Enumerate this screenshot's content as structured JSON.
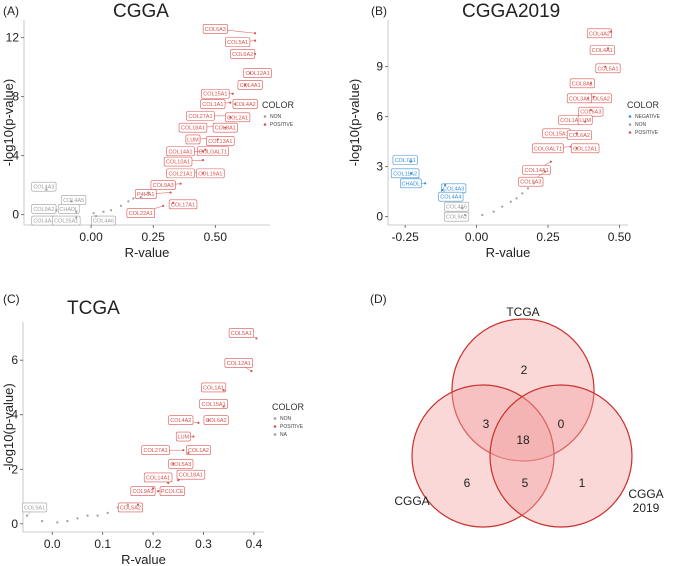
{
  "colors": {
    "positive": "#d9534f",
    "negative": "#3b8fd8",
    "non": "#9e9e9e",
    "na": "#9e9e9e",
    "venn_fill": "#f4a3a3",
    "venn_stroke": "#c9302c"
  },
  "chart_data": [
    {
      "type": "scatter",
      "panel": "(A)",
      "title": "CGGA",
      "xlabel": "R-value",
      "ylabel": "-log10(p-value)",
      "xlim": [
        -0.27,
        0.72
      ],
      "ylim": [
        -0.7,
        13.2
      ],
      "xticks": [
        0.0,
        0.25,
        0.5
      ],
      "xtick_labels": [
        "0.00",
        "0.25",
        "0.50"
      ],
      "yticks": [
        0,
        4,
        8,
        12
      ],
      "ytick_labels": [
        "0",
        "4",
        "8",
        "12"
      ],
      "legend": {
        "title": "COLOR",
        "entries": [
          {
            "label": "NON",
            "group": "non"
          },
          {
            "label": "POSITIVE",
            "group": "positive"
          }
        ]
      },
      "points": [
        {
          "x": 0.66,
          "y": 12.3,
          "label": "COL6A3",
          "group": "positive",
          "lx": 0.5,
          "ly": 12.6
        },
        {
          "x": 0.66,
          "y": 11.8,
          "label": "COL5A1",
          "group": "positive",
          "lx": 0.59,
          "ly": 11.7
        },
        {
          "x": 0.66,
          "y": 10.9,
          "label": "COL6A2",
          "group": "positive",
          "lx": 0.61,
          "ly": 10.9
        },
        {
          "x": 0.64,
          "y": 9.6,
          "label": "COL12A1",
          "group": "positive",
          "lx": 0.67,
          "ly": 9.6
        },
        {
          "x": 0.62,
          "y": 8.8,
          "label": "COL4A1",
          "group": "positive",
          "lx": 0.64,
          "ly": 8.8
        },
        {
          "x": 0.57,
          "y": 8.2,
          "label": "COL15A1",
          "group": "positive",
          "lx": 0.5,
          "ly": 8.2
        },
        {
          "x": 0.56,
          "y": 7.6,
          "label": "COL1A1",
          "group": "positive",
          "lx": 0.49,
          "ly": 7.5
        },
        {
          "x": 0.58,
          "y": 7.5,
          "label": "COL4A2",
          "group": "positive",
          "lx": 0.62,
          "ly": 7.5
        },
        {
          "x": 0.55,
          "y": 6.7,
          "label": "COL27A1",
          "group": "positive",
          "lx": 0.44,
          "ly": 6.7
        },
        {
          "x": 0.56,
          "y": 6.6,
          "label": "COL2A1",
          "group": "positive",
          "lx": 0.59,
          "ly": 6.6
        },
        {
          "x": 0.53,
          "y": 6.0,
          "label": "COL18A1",
          "group": "positive",
          "lx": 0.41,
          "ly": 5.9
        },
        {
          "x": 0.54,
          "y": 5.9,
          "label": "COL8A1",
          "group": "positive",
          "lx": 0.54,
          "ly": 5.9
        },
        {
          "x": 0.5,
          "y": 5.2,
          "label": "LUM",
          "group": "positive",
          "lx": 0.41,
          "ly": 5.1
        },
        {
          "x": 0.51,
          "y": 5.1,
          "label": "COL13A1",
          "group": "positive",
          "lx": 0.52,
          "ly": 5.0
        },
        {
          "x": 0.46,
          "y": 4.4,
          "label": "COLGALT1",
          "group": "positive",
          "lx": 0.49,
          "ly": 4.3
        },
        {
          "x": 0.45,
          "y": 4.3,
          "label": "COL14A1",
          "group": "positive",
          "lx": 0.36,
          "ly": 4.3
        },
        {
          "x": 0.45,
          "y": 3.7,
          "label": "COL10A1",
          "group": "positive",
          "lx": 0.35,
          "ly": 3.6
        },
        {
          "x": 0.44,
          "y": 2.9,
          "label": "COL21A1",
          "group": "positive",
          "lx": 0.36,
          "ly": 2.8
        },
        {
          "x": 0.45,
          "y": 2.8,
          "label": "COL19A1",
          "group": "positive",
          "lx": 0.48,
          "ly": 2.8
        },
        {
          "x": 0.36,
          "y": 2.1,
          "label": "COL9A3",
          "group": "positive",
          "lx": 0.29,
          "ly": 2.0
        },
        {
          "x": 0.32,
          "y": 1.5,
          "label": "P4HA1",
          "group": "positive",
          "lx": 0.22,
          "ly": 1.4
        },
        {
          "x": 0.33,
          "y": 0.8,
          "label": "COL17A1",
          "group": "positive",
          "lx": 0.37,
          "ly": 0.7
        },
        {
          "x": 0.29,
          "y": 0.6,
          "label": "COL22A1",
          "group": "positive",
          "lx": 0.2,
          "ly": 0.1
        },
        {
          "x": -0.18,
          "y": 1.7,
          "label": "COL4A3",
          "group": "non",
          "lx": -0.19,
          "ly": 1.9
        },
        {
          "x": -0.08,
          "y": 0.9,
          "label": "COL4A5",
          "group": "non",
          "lx": -0.07,
          "ly": 1.0
        },
        {
          "x": -0.14,
          "y": 0.3,
          "label": "COL9A2",
          "group": "non",
          "lx": -0.19,
          "ly": 0.4
        },
        {
          "x": -0.06,
          "y": 0.2,
          "label": "CHADL",
          "group": "non",
          "lx": -0.09,
          "ly": 0.4
        },
        {
          "x": -0.13,
          "y": -0.2,
          "label": "COL4A4",
          "group": "non",
          "lx": -0.19,
          "ly": -0.4
        },
        {
          "x": -0.06,
          "y": -0.2,
          "label": "COL25A1",
          "group": "non",
          "lx": -0.1,
          "ly": -0.4
        },
        {
          "x": 0.02,
          "y": -0.1,
          "label": "COL4A6",
          "group": "non",
          "lx": 0.05,
          "ly": -0.4
        },
        {
          "x": 0.08,
          "y": 0.3,
          "group": "non"
        },
        {
          "x": 0.12,
          "y": 0.6,
          "group": "non"
        },
        {
          "x": 0.15,
          "y": 0.9,
          "group": "non"
        },
        {
          "x": 0.17,
          "y": 1.1,
          "group": "non"
        },
        {
          "x": 0.01,
          "y": 0.1,
          "group": "non"
        },
        {
          "x": 0.05,
          "y": 0.2,
          "group": "non"
        },
        {
          "x": 0.2,
          "y": 1.2,
          "group": "non"
        },
        {
          "x": 0.23,
          "y": 1.5,
          "group": "non"
        }
      ]
    },
    {
      "type": "scatter",
      "panel": "(B)",
      "title": "CGGA2019",
      "xlabel": "R-value",
      "ylabel": "-log10(p-value)",
      "xlim": [
        -0.31,
        0.53
      ],
      "ylim": [
        -0.5,
        11.8
      ],
      "xticks": [
        -0.25,
        0.0,
        0.25,
        0.5
      ],
      "xtick_labels": [
        "-0.25",
        "0.00",
        "0.25",
        "0.50"
      ],
      "yticks": [
        0,
        3,
        6,
        9
      ],
      "ytick_labels": [
        "0",
        "3",
        "6",
        "9"
      ],
      "legend": {
        "title": "COLOR",
        "entries": [
          {
            "label": "NEGATIVE",
            "group": "negative"
          },
          {
            "label": "NON",
            "group": "non"
          },
          {
            "label": "POSITIVE",
            "group": "positive"
          }
        ]
      },
      "points": [
        {
          "x": 0.47,
          "y": 11.1,
          "label": "COL4A2",
          "group": "positive",
          "lx": 0.43,
          "ly": 11.0
        },
        {
          "x": 0.46,
          "y": 10.1,
          "label": "COL4A1",
          "group": "positive",
          "lx": 0.44,
          "ly": 10.0
        },
        {
          "x": 0.45,
          "y": 9.0,
          "label": "COL5A1",
          "group": "positive",
          "lx": 0.46,
          "ly": 8.9
        },
        {
          "x": 0.4,
          "y": 8.0,
          "label": "COL8A1",
          "group": "positive",
          "lx": 0.37,
          "ly": 8.0
        },
        {
          "x": 0.41,
          "y": 7.2,
          "label": "COL5A2",
          "group": "positive",
          "lx": 0.43,
          "ly": 7.1
        },
        {
          "x": 0.39,
          "y": 7.1,
          "label": "COL3A1",
          "group": "positive",
          "lx": 0.36,
          "ly": 7.1
        },
        {
          "x": 0.4,
          "y": 6.4,
          "label": "COL6A3",
          "group": "positive",
          "lx": 0.4,
          "ly": 6.3
        },
        {
          "x": 0.37,
          "y": 5.8,
          "label": "COL1A2",
          "group": "positive",
          "lx": 0.33,
          "ly": 5.8
        },
        {
          "x": 0.38,
          "y": 5.7,
          "label": "LUM",
          "group": "positive",
          "lx": 0.38,
          "ly": 5.8
        },
        {
          "x": 0.34,
          "y": 5.1,
          "label": "COL15A1",
          "group": "positive",
          "lx": 0.28,
          "ly": 5.0
        },
        {
          "x": 0.35,
          "y": 5.0,
          "label": "COL6A2",
          "group": "positive",
          "lx": 0.36,
          "ly": 4.9
        },
        {
          "x": 0.33,
          "y": 4.2,
          "label": "COLGALT1",
          "group": "positive",
          "lx": 0.25,
          "ly": 4.1
        },
        {
          "x": 0.35,
          "y": 4.1,
          "label": "COL12A1",
          "group": "positive",
          "lx": 0.38,
          "ly": 4.1
        },
        {
          "x": 0.26,
          "y": 3.3,
          "label": "COL14A1",
          "group": "positive",
          "lx": 0.21,
          "ly": 2.8
        },
        {
          "x": 0.24,
          "y": 2.7,
          "label": "COL9A3",
          "group": "positive",
          "lx": 0.19,
          "ly": 2.1
        },
        {
          "x": -0.23,
          "y": 3.3,
          "label": "COL7A1",
          "group": "negative",
          "lx": -0.25,
          "ly": 3.4
        },
        {
          "x": -0.23,
          "y": 2.6,
          "label": "COL11A2",
          "group": "negative",
          "lx": -0.25,
          "ly": 2.6
        },
        {
          "x": -0.18,
          "y": 2.0,
          "label": "CHADL",
          "group": "negative",
          "lx": -0.23,
          "ly": 2.0
        },
        {
          "x": -0.11,
          "y": 1.9,
          "label": "COL4A3",
          "group": "negative",
          "lx": -0.08,
          "ly": 1.7
        },
        {
          "x": -0.12,
          "y": 1.6,
          "label": "COL4A4",
          "group": "negative",
          "lx": -0.09,
          "ly": 1.2
        },
        {
          "x": -0.05,
          "y": 0.5,
          "label": "COL4A6",
          "group": "non",
          "lx": -0.07,
          "ly": 0.6
        },
        {
          "x": -0.04,
          "y": 0.1,
          "label": "COL9A2",
          "group": "non",
          "lx": -0.07,
          "ly": 0.0
        },
        {
          "x": 0.02,
          "y": 0.1,
          "group": "non"
        },
        {
          "x": 0.06,
          "y": 0.3,
          "group": "non"
        },
        {
          "x": 0.09,
          "y": 0.6,
          "group": "non"
        },
        {
          "x": 0.12,
          "y": 0.9,
          "group": "non"
        },
        {
          "x": 0.14,
          "y": 1.1,
          "group": "non"
        },
        {
          "x": 0.16,
          "y": 1.4,
          "group": "non"
        },
        {
          "x": 0.18,
          "y": 1.7,
          "group": "non"
        },
        {
          "x": 0.2,
          "y": 2.0,
          "group": "non"
        }
      ]
    },
    {
      "type": "scatter",
      "panel": "(C)",
      "title": "TCGA",
      "xlabel": "R-value",
      "ylabel": "-log10(p-value)",
      "xlim": [
        -0.058,
        0.42
      ],
      "ylim": [
        -0.3,
        7.4
      ],
      "xticks": [
        0.0,
        0.1,
        0.2,
        0.3,
        0.4
      ],
      "xtick_labels": [
        "0.0",
        "0.1",
        "0.2",
        "0.3",
        "0.4"
      ],
      "yticks": [
        0,
        2,
        4,
        6
      ],
      "ytick_labels": [
        "0",
        "2",
        "4",
        "6"
      ],
      "legend": {
        "title": "COLOR",
        "entries": [
          {
            "label": "NON",
            "group": "non"
          },
          {
            "label": "POSITIVE",
            "group": "positive"
          },
          {
            "label": "NA",
            "group": "na"
          }
        ]
      },
      "points": [
        {
          "x": 0.405,
          "y": 6.8,
          "label": "COL5A1",
          "group": "positive",
          "lx": 0.375,
          "ly": 7.0
        },
        {
          "x": 0.395,
          "y": 5.6,
          "label": "COL12A1",
          "group": "positive",
          "lx": 0.37,
          "ly": 5.9
        },
        {
          "x": 0.34,
          "y": 4.9,
          "label": "COL1A1",
          "group": "positive",
          "lx": 0.32,
          "ly": 5.0
        },
        {
          "x": 0.34,
          "y": 4.3,
          "label": "COL15A1",
          "group": "positive",
          "lx": 0.32,
          "ly": 4.4
        },
        {
          "x": 0.31,
          "y": 3.8,
          "label": "COL6A2",
          "group": "positive",
          "lx": 0.325,
          "ly": 3.8
        },
        {
          "x": 0.29,
          "y": 3.7,
          "label": "COL4A2",
          "group": "positive",
          "lx": 0.255,
          "ly": 3.8
        },
        {
          "x": 0.28,
          "y": 3.2,
          "label": "LUM",
          "group": "positive",
          "lx": 0.26,
          "ly": 3.2
        },
        {
          "x": 0.26,
          "y": 2.7,
          "label": "COL27A1",
          "group": "positive",
          "lx": 0.205,
          "ly": 2.7
        },
        {
          "x": 0.27,
          "y": 2.6,
          "label": "COL1A2",
          "group": "positive",
          "lx": 0.29,
          "ly": 2.7
        },
        {
          "x": 0.24,
          "y": 2.2,
          "label": "COL5A3",
          "group": "positive",
          "lx": 0.255,
          "ly": 2.2
        },
        {
          "x": 0.23,
          "y": 1.5,
          "label": "COL14A1",
          "group": "positive",
          "lx": 0.21,
          "ly": 1.7
        },
        {
          "x": 0.25,
          "y": 1.6,
          "label": "COL18A1",
          "group": "positive",
          "lx": 0.275,
          "ly": 1.8
        },
        {
          "x": 0.2,
          "y": 1.3,
          "label": "COL9A3",
          "group": "positive",
          "lx": 0.18,
          "ly": 1.2
        },
        {
          "x": 0.21,
          "y": 1.2,
          "label": "PCOLCE",
          "group": "positive",
          "lx": 0.238,
          "ly": 1.2
        },
        {
          "x": 0.17,
          "y": 0.7,
          "label": "COL5A2",
          "group": "positive",
          "lx": 0.155,
          "ly": 0.6
        },
        {
          "x": -0.05,
          "y": 0.3,
          "label": "COL9A1",
          "group": "non",
          "lx": -0.035,
          "ly": 0.6
        },
        {
          "x": -0.02,
          "y": 0.1,
          "group": "non"
        },
        {
          "x": 0.01,
          "y": 0.05,
          "group": "non"
        },
        {
          "x": 0.03,
          "y": 0.1,
          "group": "non"
        },
        {
          "x": 0.05,
          "y": 0.2,
          "group": "non"
        },
        {
          "x": 0.07,
          "y": 0.3,
          "group": "non"
        },
        {
          "x": 0.09,
          "y": 0.3,
          "group": "non"
        },
        {
          "x": 0.11,
          "y": 0.4,
          "group": "non"
        },
        {
          "x": 0.13,
          "y": 0.6,
          "group": "non"
        },
        {
          "x": 0.15,
          "y": 0.7,
          "group": "non"
        }
      ]
    },
    {
      "type": "venn",
      "panel": "(D)",
      "sets": [
        "TCGA",
        "CGGA",
        "CGGA 2019"
      ],
      "regions": {
        "tcga_only": 2,
        "cgga_only": 6,
        "cgga2019_only": 1,
        "tcga_cgga": 3,
        "tcga_cgga2019": 0,
        "cgga_cgga2019": 5,
        "all_three": 18
      }
    }
  ]
}
